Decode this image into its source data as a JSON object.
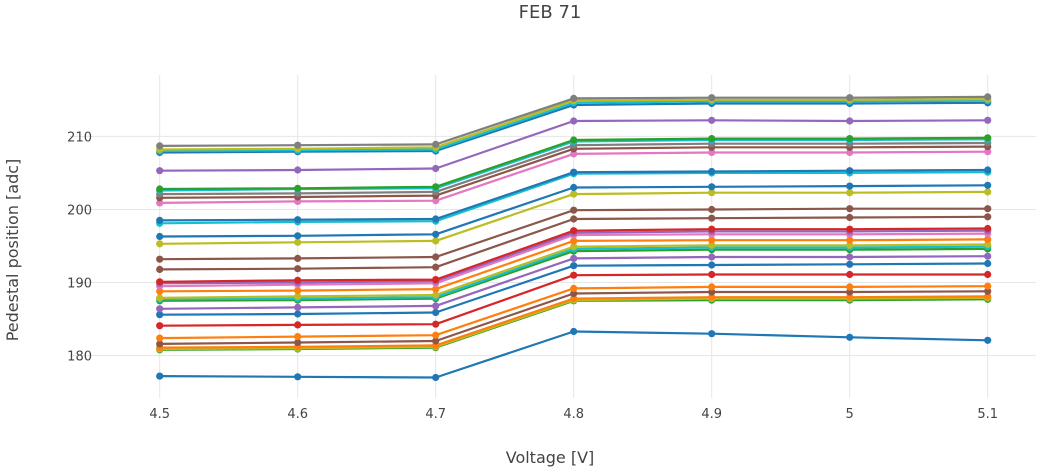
{
  "chart_data": {
    "type": "line",
    "title": "FEB 71",
    "xlabel": "Voltage [V]",
    "ylabel": "Pedestal position [adc]",
    "x": [
      4.5,
      4.6,
      4.7,
      4.8,
      4.9,
      5,
      5.1
    ],
    "x_tick_labels": [
      "4.5",
      "4.6",
      "4.7",
      "4.8",
      "4.9",
      "5",
      "5.1"
    ],
    "y_ticks": [
      180,
      190,
      200,
      210
    ],
    "y_tick_labels": [
      "180",
      "190",
      "200",
      "210"
    ],
    "xlim": [
      4.435,
      5.135
    ],
    "ylim": [
      174.2,
      218.4
    ],
    "grid": true,
    "legend": "none",
    "series": [
      {
        "color": "#7f7f7f",
        "values": [
          208.7,
          208.8,
          208.9,
          215.2,
          215.3,
          215.3,
          215.4
        ]
      },
      {
        "color": "#bcbd22",
        "values": [
          208.2,
          208.3,
          208.5,
          214.9,
          215.0,
          215.0,
          215.1
        ]
      },
      {
        "color": "#17becf",
        "values": [
          208.0,
          208.1,
          208.2,
          214.6,
          214.8,
          214.8,
          214.9
        ]
      },
      {
        "color": "#1f77b4",
        "values": [
          207.8,
          207.9,
          208.0,
          214.3,
          214.5,
          214.5,
          214.6
        ]
      },
      {
        "color": "#9467bd",
        "values": [
          205.3,
          205.4,
          205.6,
          212.1,
          212.2,
          212.1,
          212.2
        ]
      },
      {
        "color": "#2ca02c",
        "values": [
          202.8,
          202.9,
          203.1,
          209.5,
          209.7,
          209.7,
          209.8
        ]
      },
      {
        "color": "#17becf",
        "values": [
          202.6,
          202.8,
          202.9,
          209.3,
          209.5,
          209.5,
          209.6
        ]
      },
      {
        "color": "#7f7f7f",
        "values": [
          202.1,
          202.2,
          202.4,
          208.8,
          209.0,
          209.0,
          209.1
        ]
      },
      {
        "color": "#8c564b",
        "values": [
          201.6,
          201.7,
          201.9,
          208.3,
          208.5,
          208.5,
          208.6
        ]
      },
      {
        "color": "#e377c2",
        "values": [
          200.9,
          201.1,
          201.2,
          207.6,
          207.8,
          207.8,
          207.9
        ]
      },
      {
        "color": "#1f77b4",
        "values": [
          198.5,
          198.6,
          198.7,
          205.1,
          205.2,
          205.3,
          205.4
        ]
      },
      {
        "color": "#17becf",
        "values": [
          198.1,
          198.3,
          198.4,
          204.9,
          205.0,
          205.0,
          205.1
        ]
      },
      {
        "color": "#1f77b4",
        "values": [
          196.3,
          196.4,
          196.6,
          203.0,
          203.1,
          203.2,
          203.3
        ]
      },
      {
        "color": "#bcbd22",
        "values": [
          195.3,
          195.5,
          195.7,
          202.1,
          202.3,
          202.3,
          202.4
        ]
      },
      {
        "color": "#8c564b",
        "values": [
          193.2,
          193.3,
          193.5,
          199.9,
          200.0,
          200.1,
          200.1
        ]
      },
      {
        "color": "#8c564b",
        "values": [
          191.8,
          191.9,
          192.1,
          198.7,
          198.8,
          198.9,
          199.0
        ]
      },
      {
        "color": "#d62728",
        "values": [
          190.1,
          190.3,
          190.4,
          197.1,
          197.3,
          197.3,
          197.4
        ]
      },
      {
        "color": "#9467bd",
        "values": [
          189.9,
          190.0,
          190.2,
          196.8,
          197.0,
          197.0,
          197.1
        ]
      },
      {
        "color": "#e377c2",
        "values": [
          189.5,
          189.7,
          189.9,
          196.5,
          196.6,
          196.6,
          196.7
        ]
      },
      {
        "color": "#ff7f0e",
        "values": [
          188.8,
          188.9,
          189.1,
          195.7,
          195.8,
          195.8,
          195.9
        ]
      },
      {
        "color": "#bcbd22",
        "values": [
          187.9,
          188.1,
          188.3,
          194.9,
          195.1,
          195.1,
          195.2
        ]
      },
      {
        "color": "#17becf",
        "values": [
          187.7,
          187.8,
          188.0,
          194.6,
          194.8,
          194.8,
          194.9
        ]
      },
      {
        "color": "#2ca02c",
        "values": [
          187.5,
          187.6,
          187.8,
          194.3,
          194.5,
          194.5,
          194.6
        ]
      },
      {
        "color": "#9467bd",
        "values": [
          186.4,
          186.6,
          186.8,
          193.3,
          193.5,
          193.5,
          193.6
        ]
      },
      {
        "color": "#1f77b4",
        "values": [
          185.6,
          185.7,
          185.9,
          192.3,
          192.4,
          192.5,
          192.6
        ]
      },
      {
        "color": "#d62728",
        "values": [
          184.1,
          184.2,
          184.3,
          191.0,
          191.1,
          191.1,
          191.1
        ]
      },
      {
        "color": "#ff7f0e",
        "values": [
          182.4,
          182.6,
          182.8,
          189.2,
          189.4,
          189.4,
          189.5
        ]
      },
      {
        "color": "#8c564b",
        "values": [
          181.6,
          181.8,
          182.0,
          188.5,
          188.7,
          188.7,
          188.8
        ]
      },
      {
        "color": "#ff7f0e",
        "values": [
          181.1,
          181.2,
          181.4,
          187.8,
          188.0,
          188.0,
          188.1
        ]
      },
      {
        "color": "#bcbd22",
        "values": [
          180.9,
          181.0,
          181.2,
          187.6,
          187.8,
          187.8,
          187.9
        ]
      },
      {
        "color": "#2ca02c",
        "values": [
          180.8,
          180.9,
          181.1,
          187.5,
          187.6,
          187.6,
          187.7
        ]
      },
      {
        "color": "#1f77b4",
        "values": [
          177.2,
          177.1,
          177.0,
          183.3,
          183.0,
          182.5,
          182.1
        ]
      }
    ]
  }
}
